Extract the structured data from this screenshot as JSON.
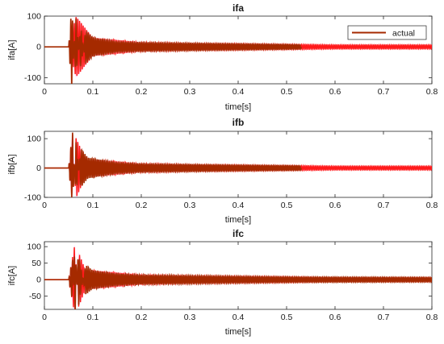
{
  "chart_data": [
    {
      "type": "line",
      "title": "ifa",
      "xlabel": "time[s]",
      "ylabel": "ifa[A]",
      "xlim": [
        0,
        0.8
      ],
      "ylim": [
        -120,
        100
      ],
      "xticks": [
        0,
        0.1,
        0.2,
        0.3,
        0.4,
        0.5,
        0.6,
        0.7,
        0.8
      ],
      "xtick_labels": [
        "0",
        "0.1",
        "0.2",
        "0.3",
        "0.4",
        "0.5",
        "0.6",
        "0.7",
        "0.8"
      ],
      "yticks": [
        -100,
        0,
        100
      ],
      "ytick_labels": [
        "-100",
        "0",
        "100"
      ],
      "grid": false,
      "legend": {
        "placement": "top-right",
        "entries": [
          "actual"
        ]
      },
      "colors": {
        "actual": "#a52a00",
        "estimate": "#ff1a1a",
        "band": "#ff66ff"
      },
      "series": [
        {
          "name": "actual",
          "points": [
            [
              0,
              0
            ],
            [
              0.05,
              0
            ],
            [
              0.0565,
              -130
            ],
            [
              0.065,
              100
            ],
            [
              0.075,
              -70
            ],
            [
              0.085,
              55
            ],
            [
              0.1,
              30
            ],
            [
              0.15,
              16
            ],
            [
              0.2,
              14
            ],
            [
              0.3,
              12
            ],
            [
              0.4,
              10
            ],
            [
              0.5,
              8
            ],
            [
              0.53,
              7
            ]
          ]
        }
      ],
      "overlay_points": [
        [
          0.05,
          0
        ],
        [
          0.065,
          100
        ],
        [
          0.1,
          30
        ],
        [
          0.2,
          15
        ],
        [
          0.3,
          12
        ],
        [
          0.5,
          9
        ],
        [
          0.6,
          7
        ],
        [
          0.8,
          7
        ]
      ]
    },
    {
      "type": "line",
      "title": "ifb",
      "xlabel": "time[s]",
      "ylabel": "ifb[A]",
      "xlim": [
        0,
        0.8
      ],
      "ylim": [
        -100,
        125
      ],
      "xticks": [
        0,
        0.1,
        0.2,
        0.3,
        0.4,
        0.5,
        0.6,
        0.7,
        0.8
      ],
      "xtick_labels": [
        "0",
        "0.1",
        "0.2",
        "0.3",
        "0.4",
        "0.5",
        "0.6",
        "0.7",
        "0.8"
      ],
      "yticks": [
        -100,
        0,
        100
      ],
      "ytick_labels": [
        "-100",
        "0",
        "100"
      ],
      "grid": false,
      "series": [
        {
          "name": "actual",
          "points": [
            [
              0,
              0
            ],
            [
              0.05,
              0
            ],
            [
              0.058,
              125
            ],
            [
              0.065,
              -95
            ],
            [
              0.075,
              65
            ],
            [
              0.09,
              35
            ],
            [
              0.15,
              18
            ],
            [
              0.2,
              14
            ],
            [
              0.3,
              12
            ],
            [
              0.4,
              10
            ],
            [
              0.53,
              8
            ]
          ]
        }
      ],
      "overlay_points": [
        [
          0.05,
          0
        ],
        [
          0.058,
          120
        ],
        [
          0.065,
          -105
        ],
        [
          0.1,
          30
        ],
        [
          0.2,
          15
        ],
        [
          0.3,
          12
        ],
        [
          0.5,
          9
        ],
        [
          0.6,
          7
        ],
        [
          0.8,
          7
        ]
      ]
    },
    {
      "type": "line",
      "title": "ifc",
      "xlabel": "time[s]",
      "ylabel": "ifc[A]",
      "xlim": [
        0,
        0.8
      ],
      "ylim": [
        -90,
        115
      ],
      "xticks": [
        0,
        0.1,
        0.2,
        0.3,
        0.4,
        0.5,
        0.6,
        0.7,
        0.8
      ],
      "xtick_labels": [
        "0",
        "0.1",
        "0.2",
        "0.3",
        "0.4",
        "0.5",
        "0.6",
        "0.7",
        "0.8"
      ],
      "yticks": [
        -50,
        0,
        50,
        100
      ],
      "ytick_labels": [
        "-50",
        "0",
        "50",
        "100"
      ],
      "grid": false,
      "series": [
        {
          "name": "actual",
          "points": [
            [
              0,
              0
            ],
            [
              0.05,
              0
            ],
            [
              0.058,
              -65
            ],
            [
              0.063,
              110
            ],
            [
              0.07,
              -85
            ],
            [
              0.085,
              45
            ],
            [
              0.1,
              28
            ],
            [
              0.15,
              18
            ],
            [
              0.2,
              14
            ],
            [
              0.3,
              12
            ],
            [
              0.4,
              10
            ],
            [
              0.53,
              8
            ],
            [
              0.8,
              7
            ]
          ]
        }
      ],
      "overlay_points": [
        [
          0.05,
          0
        ],
        [
          0.063,
          110
        ],
        [
          0.07,
          -85
        ],
        [
          0.1,
          28
        ],
        [
          0.2,
          15
        ],
        [
          0.3,
          12
        ],
        [
          0.5,
          9
        ],
        [
          0.6,
          7
        ],
        [
          0.8,
          7
        ]
      ]
    }
  ]
}
